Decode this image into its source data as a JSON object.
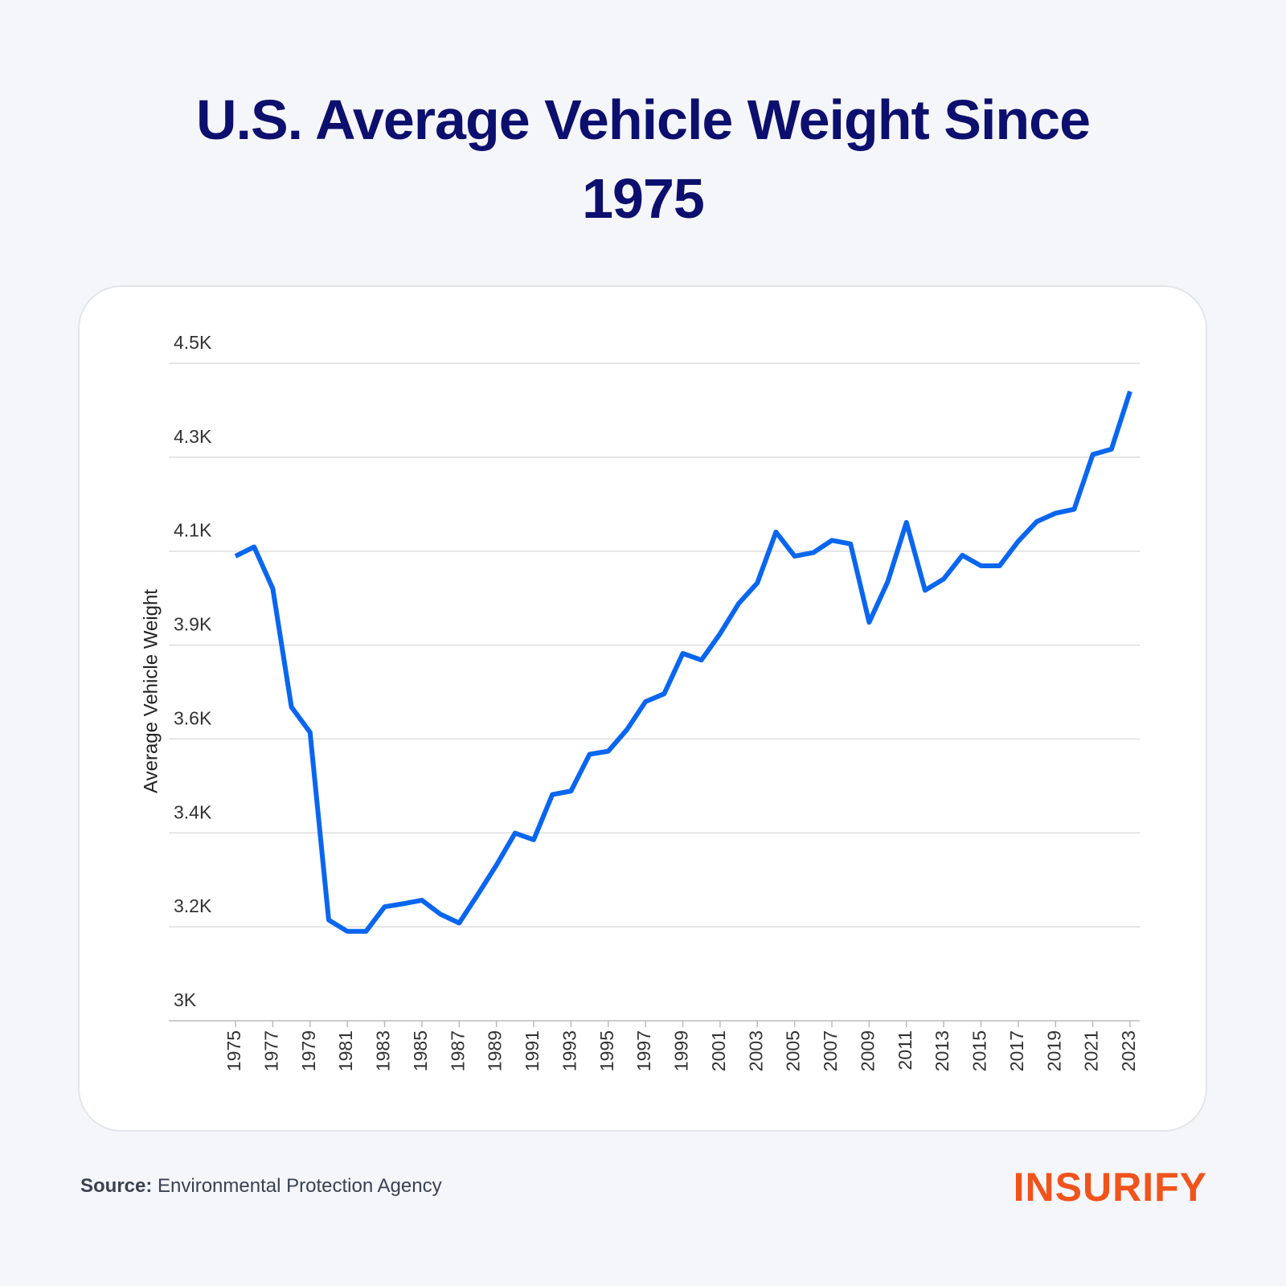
{
  "chart_data": {
    "type": "line",
    "title": "U.S. Average Vehicle Weight Since 1975",
    "y_label": "Average Vehicle Weight",
    "source_label": "Source:",
    "source": "Environmental Protection Agency",
    "logo": "INSURIFY",
    "x": [
      1975,
      1976,
      1977,
      1978,
      1979,
      1980,
      1981,
      1982,
      1983,
      1984,
      1985,
      1986,
      1987,
      1988,
      1989,
      1990,
      1991,
      1992,
      1993,
      1994,
      1995,
      1996,
      1997,
      1998,
      1999,
      2000,
      2001,
      2002,
      2003,
      2004,
      2005,
      2006,
      2007,
      2008,
      2009,
      2010,
      2011,
      2012,
      2013,
      2014,
      2015,
      2016,
      2017,
      2018,
      2019,
      2020,
      2021,
      2022,
      2023
    ],
    "series": [
      {
        "name": "Average Vehicle Weight",
        "color": "#0a66f0",
        "values": [
          4060,
          4081,
          3986,
          3716,
          3658,
          3230,
          3204,
          3204,
          3260,
          3267,
          3275,
          3243,
          3223,
          3288,
          3355,
          3428,
          3413,
          3516,
          3524,
          3608,
          3615,
          3664,
          3728,
          3746,
          3838,
          3823,
          3883,
          3952,
          3999,
          4115,
          4060,
          4068,
          4096,
          4088,
          3909,
          4002,
          4137,
          3982,
          4008,
          4062,
          4038,
          4038,
          4094,
          4139,
          4158,
          4167,
          4292,
          4304,
          4436
        ]
      }
    ],
    "xlim": [
      1975,
      2023
    ],
    "xticks": [
      1975,
      1977,
      1979,
      1981,
      1983,
      1985,
      1987,
      1989,
      1991,
      1993,
      1995,
      1997,
      1999,
      2001,
      2003,
      2005,
      2007,
      2009,
      2011,
      2013,
      2015,
      2017,
      2019,
      2021,
      2023
    ],
    "ylim": [
      3000,
      4500
    ],
    "yticks": [
      {
        "value": 3000,
        "label": "3K"
      },
      {
        "value": 3214.29,
        "label": "3.2K"
      },
      {
        "value": 3428.57,
        "label": "3.4K"
      },
      {
        "value": 3642.86,
        "label": "3.6K"
      },
      {
        "value": 3857.14,
        "label": "3.9K"
      },
      {
        "value": 4071.43,
        "label": "4.1K"
      },
      {
        "value": 4285.71,
        "label": "4.3K"
      },
      {
        "value": 4500,
        "label": "4.5K"
      }
    ],
    "grid": true
  }
}
